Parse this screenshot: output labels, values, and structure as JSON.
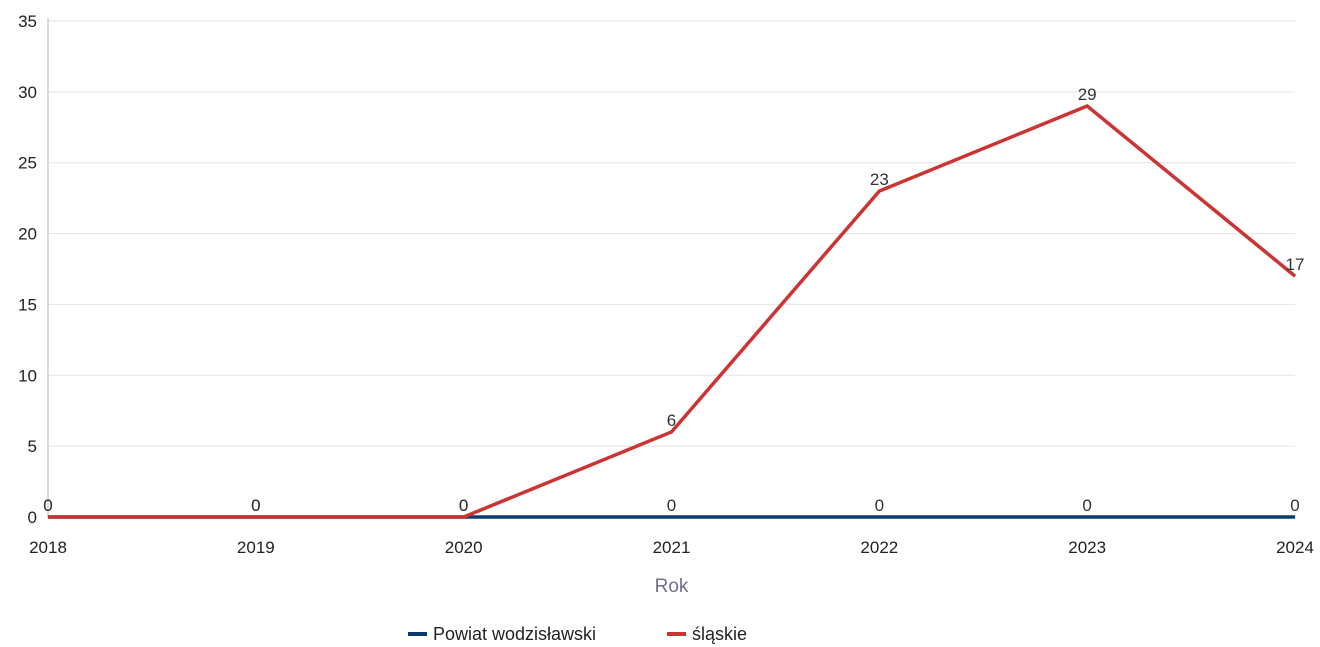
{
  "chart_data": {
    "type": "line",
    "title": "",
    "xlabel": "Rok",
    "ylabel": "",
    "x": [
      "2018",
      "2019",
      "2020",
      "2021",
      "2022",
      "2023",
      "2024"
    ],
    "ylim": [
      0,
      35
    ],
    "yticks": [
      0,
      5,
      10,
      15,
      20,
      25,
      30,
      35
    ],
    "grid": true,
    "legend_position": "bottom",
    "series": [
      {
        "name": "Powiat wodzisławski",
        "color": "#0d3a6e",
        "values": [
          0,
          0,
          0,
          0,
          0,
          0,
          0
        ]
      },
      {
        "name": "śląskie",
        "color": "#cc3333",
        "values": [
          0,
          0,
          0,
          6,
          23,
          29,
          17
        ]
      }
    ]
  }
}
